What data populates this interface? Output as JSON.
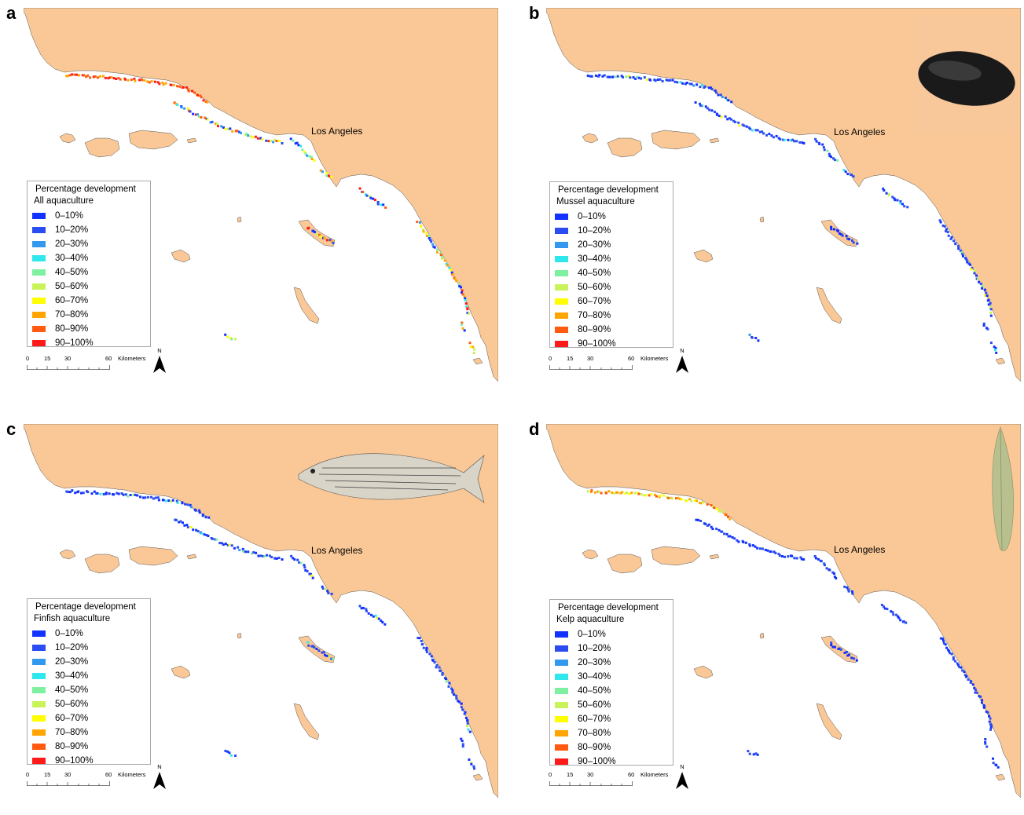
{
  "colors": {
    "land": "#fac896",
    "water": "#ffffff",
    "scale": [
      "#1232ff",
      "#2a4cf0",
      "#3399ee",
      "#2ee8ee",
      "#7ef0a0",
      "#c8f45a",
      "#ffff00",
      "#ffa500",
      "#ff5a10",
      "#ff1a1a"
    ]
  },
  "legend_items": [
    "0–10%",
    "10–20%",
    "20–30%",
    "30–40%",
    "40–50%",
    "50–60%",
    "60–70%",
    "70–80%",
    "80–90%",
    "90–100%"
  ],
  "legend_title": "Percentage development",
  "city_label": "Los Angeles",
  "scale_bar": {
    "labels": [
      "0",
      "15",
      "30",
      "60"
    ],
    "unit": "Kilometers"
  },
  "north_label": "N",
  "panels": [
    {
      "letter": "a",
      "subtitle": "All aquaculture",
      "icon": "none",
      "mode": "mixed"
    },
    {
      "letter": "b",
      "subtitle": "Mussel aquaculture",
      "icon": "mussel-icon",
      "mode": "blue"
    },
    {
      "letter": "c",
      "subtitle": "Finfish aquaculture",
      "icon": "fish-icon",
      "mode": "blue"
    },
    {
      "letter": "d",
      "subtitle": "Kelp aquaculture",
      "icon": "kelp-icon",
      "mode": "kelp"
    }
  ]
}
